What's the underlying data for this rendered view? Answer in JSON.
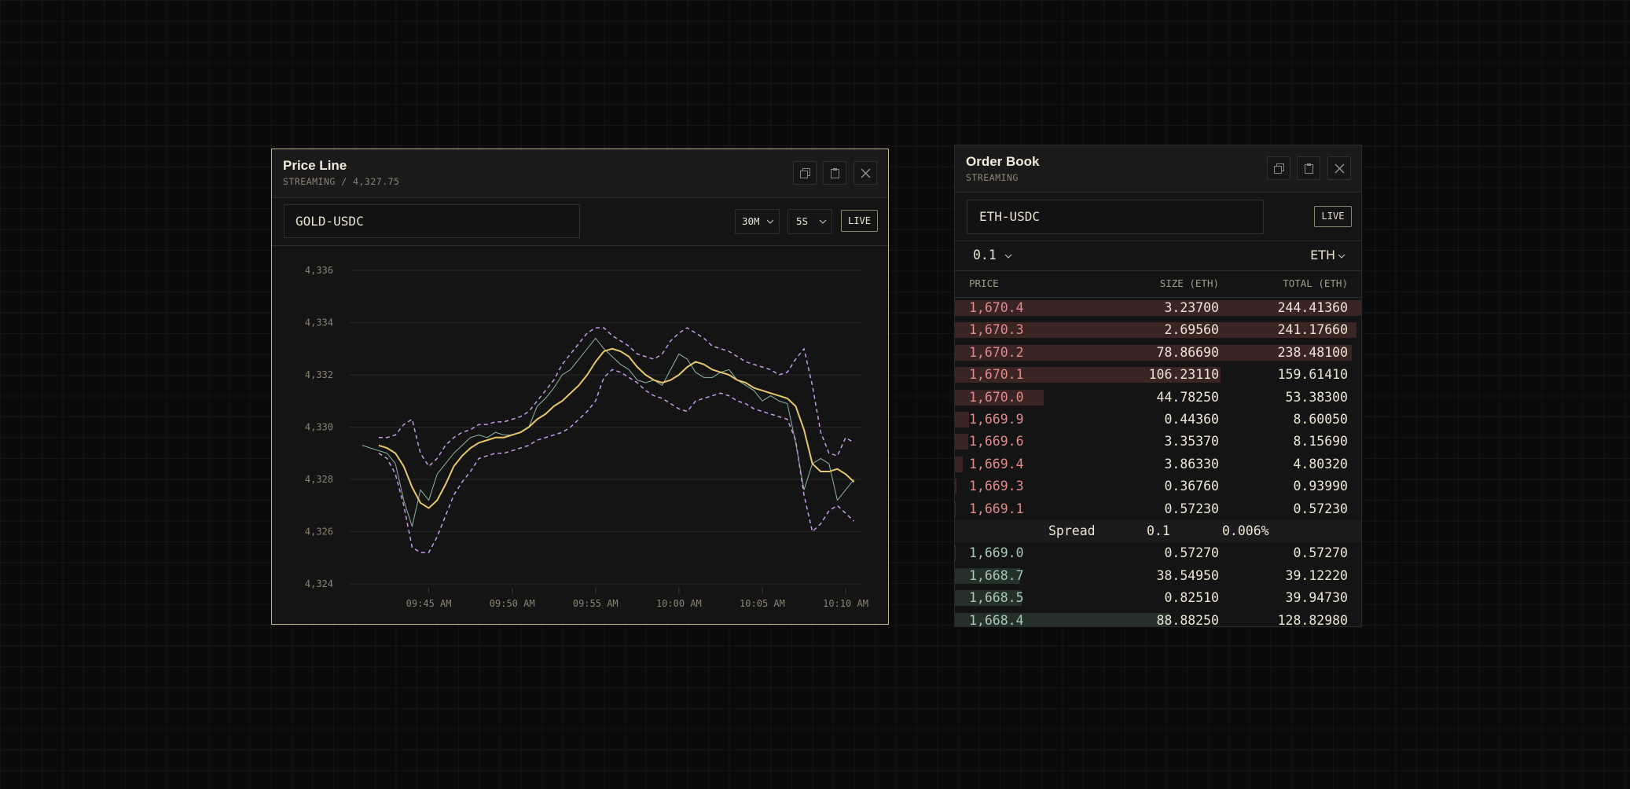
{
  "price_line": {
    "title": "Price Line",
    "subtitle": "STREAMING / 4,327.75",
    "symbol": "GOLD-USDC",
    "range": "30M",
    "interval": "5S",
    "live": "LIVE"
  },
  "chart_data": {
    "type": "line",
    "x": [
      581.0,
      581.5,
      582.0,
      582.5,
      583.0,
      583.5,
      584.0,
      584.5,
      585.0,
      585.5,
      586.0,
      586.5,
      587.0,
      587.5,
      588.0,
      588.5,
      589.0,
      589.5,
      590.0,
      590.5,
      591.0,
      591.5,
      592.0,
      592.5,
      593.0,
      593.5,
      594.0,
      594.5,
      595.0,
      595.5,
      596.0,
      596.5,
      597.0,
      597.5,
      598.0,
      598.5,
      599.0,
      599.5,
      600.0,
      600.5,
      601.0,
      601.5,
      602.0,
      602.5,
      603.0,
      603.5,
      604.0,
      604.5,
      605.0,
      605.5,
      606.0,
      606.5,
      607.0,
      607.5,
      608.0,
      608.5,
      609.0,
      609.5,
      610.0,
      610.5
    ],
    "series": [
      {
        "color": "#8fb5a0",
        "width": 1,
        "dash": false,
        "values": [
          4329.3,
          4329.2,
          4329.1,
          4329.0,
          4328.6,
          4327.2,
          4326.2,
          4327.6,
          4327.2,
          4328.2,
          4328.6,
          4329.0,
          4329.3,
          4329.6,
          4329.7,
          4329.6,
          4329.8,
          4329.7,
          4329.7,
          4329.8,
          4330.0,
          4330.8,
          4331.1,
          4331.5,
          4332.0,
          4332.2,
          4332.6,
          4333.0,
          4333.4,
          4333.0,
          4332.7,
          4332.4,
          4332.2,
          4331.8,
          4331.7,
          4331.8,
          4331.6,
          4332.2,
          4332.8,
          4332.6,
          4332.1,
          4331.9,
          4331.9,
          4332.1,
          4332.2,
          4331.8,
          4331.6,
          4331.4,
          4331.0,
          4331.2,
          4331.0,
          4330.9,
          4329.4,
          4327.6,
          4328.6,
          4328.8,
          4328.6,
          4327.2,
          4327.6,
          4328.0
        ]
      },
      {
        "color": "#e6c76a",
        "width": 2,
        "dash": false,
        "values": [
          null,
          null,
          4329.3,
          4329.2,
          4329.0,
          4328.5,
          4327.7,
          4327.1,
          4326.9,
          4327.2,
          4327.8,
          4328.5,
          4328.9,
          4329.2,
          4329.4,
          4329.5,
          4329.6,
          4329.6,
          4329.7,
          4329.8,
          4330.0,
          4330.3,
          4330.5,
          4330.8,
          4331.0,
          4331.3,
          4331.6,
          4332.0,
          4332.5,
          4332.9,
          4333.0,
          4332.9,
          4332.7,
          4332.3,
          4332.0,
          4331.8,
          4331.7,
          4331.8,
          4332.0,
          4332.3,
          4332.5,
          4332.4,
          4332.2,
          4332.1,
          4332.0,
          4331.8,
          4331.7,
          4331.5,
          4331.4,
          4331.3,
          4331.2,
          4331.1,
          4330.8,
          4329.9,
          4328.6,
          4328.3,
          4328.3,
          4328.4,
          4328.2,
          4327.9
        ]
      },
      {
        "color": "#c39be6",
        "width": 1.5,
        "dash": true,
        "values": [
          null,
          null,
          4329.6,
          4329.6,
          4329.7,
          4330.1,
          4330.3,
          4329.0,
          4328.5,
          4328.8,
          4329.3,
          4329.6,
          4329.8,
          4329.9,
          4330.1,
          4330.1,
          4330.2,
          4330.2,
          4330.3,
          4330.4,
          4330.6,
          4331.0,
          4331.4,
          4331.8,
          4332.4,
          4332.8,
          4333.2,
          4333.6,
          4333.8,
          4333.8,
          4333.5,
          4333.3,
          4333.1,
          4332.8,
          4332.7,
          4332.6,
          4332.8,
          4333.3,
          4333.6,
          4333.8,
          4333.6,
          4333.4,
          4333.1,
          4333.0,
          4332.9,
          4332.7,
          4332.5,
          4332.4,
          4332.3,
          4332.2,
          4332.0,
          4332.1,
          4332.6,
          4333.0,
          4331.6,
          4329.8,
          4329.0,
          4328.9,
          4329.6,
          4329.4
        ]
      },
      {
        "color": "#c39be6",
        "width": 1.5,
        "dash": true,
        "values": [
          null,
          null,
          4329.0,
          4328.8,
          4328.2,
          4327.0,
          4325.4,
          4325.2,
          4325.2,
          4325.8,
          4326.6,
          4327.4,
          4327.9,
          4328.3,
          4328.8,
          4328.9,
          4329.0,
          4329.0,
          4329.1,
          4329.2,
          4329.3,
          4329.5,
          4329.6,
          4329.7,
          4329.8,
          4330.0,
          4330.3,
          4330.6,
          4331.0,
          4331.9,
          4332.2,
          4332.1,
          4331.9,
          4331.7,
          4331.4,
          4331.2,
          4331.1,
          4330.9,
          4330.7,
          4330.6,
          4331.0,
          4331.1,
          4331.2,
          4331.3,
          4331.2,
          4331.0,
          4330.9,
          4330.7,
          4330.6,
          4330.5,
          4330.4,
          4330.3,
          4329.5,
          4327.4,
          4326.0,
          4326.3,
          4326.8,
          4327.0,
          4326.7,
          4326.4
        ]
      }
    ],
    "xlim": [
      580.26,
      610.94
    ],
    "xticks": [
      {
        "value": 585,
        "label": "09:45 AM"
      },
      {
        "value": 590,
        "label": "09:50 AM"
      },
      {
        "value": 595,
        "label": "09:55 AM"
      },
      {
        "value": 600,
        "label": "10:00 AM"
      },
      {
        "value": 605,
        "label": "10:05 AM"
      },
      {
        "value": 610,
        "label": "10:10 AM"
      }
    ],
    "ylim": [
      4324,
      4336
    ],
    "yticks": [
      {
        "value": 4336,
        "label": "4,336"
      },
      {
        "value": 4334,
        "label": "4,334"
      },
      {
        "value": 4332,
        "label": "4,332"
      },
      {
        "value": 4330,
        "label": "4,330"
      },
      {
        "value": 4328,
        "label": "4,328"
      },
      {
        "value": 4326,
        "label": "4,326"
      },
      {
        "value": 4324,
        "label": "4,324"
      }
    ],
    "grid": true
  },
  "order_book": {
    "title": "Order Book",
    "subtitle": "STREAMING",
    "symbol": "ETH-USDC",
    "live": "LIVE",
    "tick": "0.1",
    "unit": "ETH",
    "columns": [
      "PRICE",
      "SIZE (ETH)",
      "TOTAL (ETH)"
    ],
    "asks": [
      [
        "1,670.4",
        "3.23700",
        "244.41360"
      ],
      [
        "1,670.3",
        "2.69560",
        "241.17660"
      ],
      [
        "1,670.2",
        "78.86690",
        "238.48100"
      ],
      [
        "1,670.1",
        "106.23110",
        "159.61410"
      ],
      [
        "1,670.0",
        "44.78250",
        "53.38300"
      ],
      [
        "1,669.9",
        "0.44360",
        "8.60050"
      ],
      [
        "1,669.6",
        "3.35370",
        "8.15690"
      ],
      [
        "1,669.4",
        "3.86330",
        "4.80320"
      ],
      [
        "1,669.3",
        "0.36760",
        "0.93990"
      ],
      [
        "1,669.1",
        "0.57230",
        "0.57230"
      ]
    ],
    "spread": {
      "label": "Spread",
      "value": "0.1",
      "percent": "0.006%"
    },
    "bids": [
      [
        "1,669.0",
        "0.57270",
        "0.57270"
      ],
      [
        "1,668.7",
        "38.54950",
        "39.12220"
      ],
      [
        "1,668.5",
        "0.82510",
        "39.94730"
      ],
      [
        "1,668.4",
        "88.88250",
        "128.82980"
      ]
    ]
  }
}
